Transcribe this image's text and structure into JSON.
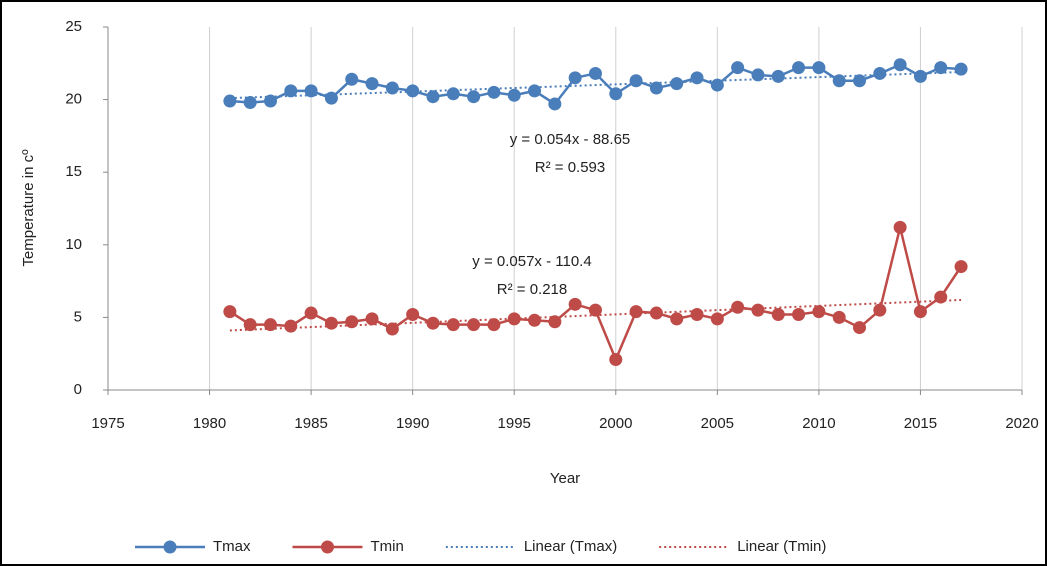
{
  "chart_data": {
    "type": "line",
    "x_label": "Year",
    "y_label": "Temperature in cº",
    "xlim": [
      1975,
      2020
    ],
    "xticks": [
      1975,
      1980,
      1985,
      1990,
      1995,
      2000,
      2005,
      2010,
      2015,
      2020
    ],
    "ylim": [
      0,
      25
    ],
    "yticks": [
      0,
      5,
      10,
      15,
      20,
      25
    ],
    "grid": "x",
    "legend": "bottom",
    "x": [
      1981,
      1982,
      1983,
      1984,
      1985,
      1986,
      1987,
      1988,
      1989,
      1990,
      1991,
      1992,
      1993,
      1994,
      1995,
      1996,
      1997,
      1998,
      1999,
      2000,
      2001,
      2002,
      2003,
      2004,
      2005,
      2006,
      2007,
      2008,
      2009,
      2010,
      2011,
      2012,
      2013,
      2014,
      2015,
      2016,
      2017
    ],
    "series": [
      {
        "name": "Tmax",
        "color": "#4a7ebb",
        "markers": true,
        "style": "solid",
        "values": [
          19.9,
          19.8,
          19.9,
          20.6,
          20.6,
          20.1,
          21.4,
          21.1,
          20.8,
          20.6,
          20.2,
          20.4,
          20.2,
          20.5,
          20.3,
          20.6,
          19.7,
          21.5,
          21.8,
          20.4,
          21.3,
          20.8,
          21.1,
          21.5,
          21.0,
          22.2,
          21.7,
          21.6,
          22.2,
          22.2,
          21.3,
          21.3,
          21.8,
          22.4,
          21.6,
          22.2,
          22.1
        ]
      },
      {
        "name": "Tmin",
        "color": "#be4b48",
        "markers": true,
        "style": "solid",
        "values": [
          5.4,
          4.5,
          4.5,
          4.4,
          5.3,
          4.6,
          4.7,
          4.9,
          4.2,
          5.2,
          4.6,
          4.5,
          4.5,
          4.5,
          4.9,
          4.8,
          4.7,
          5.9,
          5.5,
          2.1,
          5.4,
          5.3,
          4.9,
          5.2,
          4.9,
          5.7,
          5.5,
          5.2,
          5.2,
          5.4,
          5.0,
          4.3,
          5.5,
          11.2,
          5.4,
          6.4,
          8.5
        ]
      },
      {
        "name": "Linear (Tmax)",
        "color": "#4a7ebb",
        "markers": false,
        "style": "dotted",
        "x": [
          1981,
          2017
        ],
        "values": [
          20.1,
          21.9
        ]
      },
      {
        "name": "Linear (Tmin)",
        "color": "#be4b48",
        "markers": false,
        "style": "dotted",
        "x": [
          1981,
          2017
        ],
        "values": [
          4.1,
          6.2
        ]
      }
    ],
    "annotations": [
      "y = 0.054x  - 88.65",
      "R² = 0.593",
      "y = 0.057x  - 110.4",
      "R² = 0.218"
    ]
  }
}
